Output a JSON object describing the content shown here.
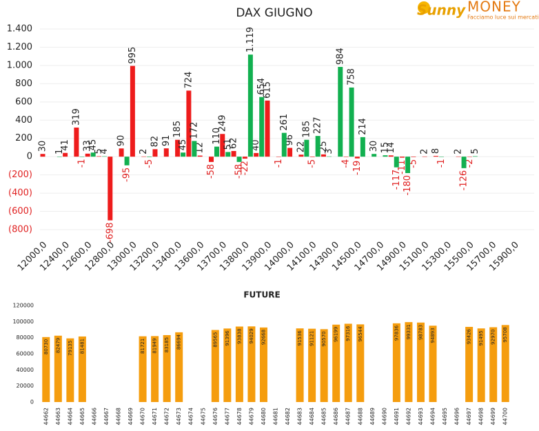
{
  "logo": {
    "brand1": "Sunny",
    "brand2": "MONEY",
    "tagline": "Facciamo luce sui mercati"
  },
  "chart_data": [
    {
      "type": "bar",
      "title": "DAX GIUGNO",
      "categories": [
        "12000,0",
        null,
        "12400,0",
        null,
        "12600,0",
        null,
        "12800,0",
        null,
        "13000,0",
        null,
        "13200,0",
        null,
        "13400,0",
        null,
        "13600,0",
        null,
        "13700,0",
        null,
        "13800,0",
        null,
        "13900,0",
        null,
        "14000,0",
        null,
        "14100,0",
        null,
        "14300,0",
        null,
        "14500,0",
        null,
        "14700,0",
        null,
        "14900,0",
        null,
        "15100,0",
        null,
        "15300,0",
        null,
        "15500,0",
        null,
        "15700,0",
        null,
        "15900,0",
        null
      ],
      "series": [
        {
          "color": "#ee1c1c",
          "values": [
            30,
            null,
            41,
            319,
            33,
            5,
            -698,
            90,
            995,
            2,
            82,
            91,
            185,
            724,
            12,
            -58,
            249,
            62,
            -22,
            40,
            615,
            -1,
            96,
            22,
            -5,
            25,
            null,
            -4,
            -19,
            null,
            null,
            14,
            -11,
            -5,
            2,
            8,
            null,
            2,
            -2,
            null,
            null,
            null,
            null,
            null
          ]
        },
        {
          "color": "#12b050",
          "values": [
            null,
            1,
            null,
            -1,
            45,
            4,
            null,
            -95,
            null,
            -5,
            null,
            null,
            45,
            172,
            null,
            110,
            51,
            -58,
            1119,
            654,
            null,
            261,
            null,
            185,
            227,
            3,
            984,
            758,
            214,
            30,
            15,
            -117,
            -180,
            null,
            null,
            -1,
            null,
            -126,
            5,
            null,
            null,
            null,
            null,
            null
          ],
          "value_labels": [
            null,
            "1",
            null,
            "-1",
            "45",
            "4",
            null,
            "-95",
            null,
            "-5",
            null,
            null,
            "45",
            "172",
            null,
            "110",
            "51",
            "-58",
            "1.119",
            "654",
            null,
            "261",
            null,
            "185",
            "227",
            "3",
            "984",
            "758",
            "214",
            "30",
            "15",
            "-117",
            "-180",
            null,
            null,
            "-1",
            null,
            "-126",
            "5",
            null,
            null,
            null,
            null,
            null
          ]
        }
      ],
      "ylim": [
        -800,
        1400
      ],
      "yticks": [
        {
          "value": 1400,
          "label": "1.400"
        },
        {
          "value": 1200,
          "label": "1.200"
        },
        {
          "value": 1000,
          "label": "1.000"
        },
        800,
        600,
        400,
        200,
        0,
        {
          "value": -200,
          "label": "(200)"
        },
        {
          "value": -400,
          "label": "(400)"
        },
        {
          "value": -600,
          "label": "(600)"
        },
        {
          "value": -800,
          "label": "(800)"
        }
      ],
      "grid": true
    },
    {
      "type": "bar",
      "title": "FUTURE",
      "color": "#f59d0e",
      "categories": [
        "44662",
        "44663",
        "44664",
        "44665",
        "44666",
        "44667",
        "44668",
        "44669",
        "44670",
        "44671",
        "44672",
        "44673",
        "44674",
        "44675",
        "44676",
        "44677",
        "44678",
        "44679",
        "44680",
        "44681",
        "44682",
        "44683",
        "44684",
        "44685",
        "44686",
        "44687",
        "44688",
        "44689",
        "44690",
        "44691",
        "44692",
        "44693",
        "44694",
        "44695",
        "44696",
        "44697",
        "44698",
        "44699",
        "44700"
      ],
      "values": [
        80730,
        82479,
        79135,
        81481,
        null,
        null,
        null,
        null,
        81721,
        81949,
        83185,
        86694,
        null,
        null,
        89565,
        91396,
        93838,
        94029,
        92668,
        null,
        null,
        91536,
        91121,
        90570,
        96199,
        97316,
        96544,
        null,
        null,
        97836,
        99331,
        98783,
        94893,
        null,
        null,
        93426,
        91495,
        92970,
        95708
      ],
      "ylim": [
        0,
        120000
      ],
      "yticks": [
        0,
        20000,
        40000,
        60000,
        80000,
        100000,
        120000
      ],
      "grid": false
    }
  ]
}
